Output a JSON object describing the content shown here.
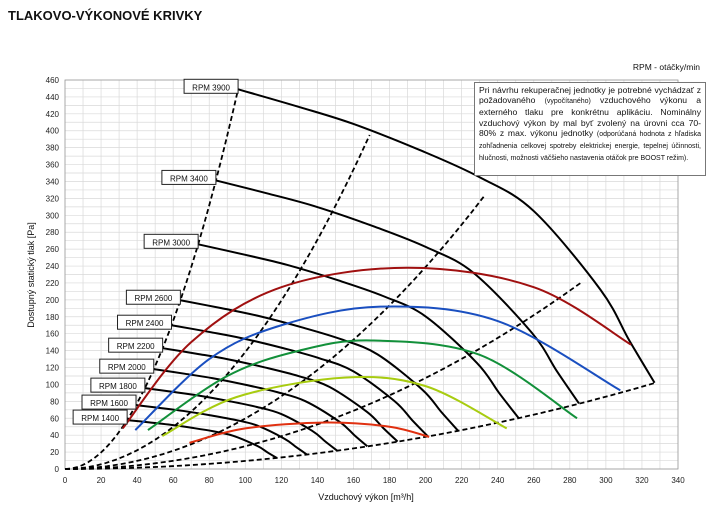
{
  "chart_data": {
    "type": "line",
    "title": "TLAKOVO-VÝKONOVÉ KRIVKY",
    "xlabel": "Vzduchový výkon [m³/h]",
    "ylabel": "Dostupný statický tlak [Pa]",
    "xlim": [
      0,
      340
    ],
    "ylim": [
      0,
      460
    ],
    "xticks": [
      0,
      20,
      40,
      60,
      80,
      100,
      120,
      140,
      160,
      180,
      200,
      220,
      240,
      260,
      280,
      300,
      320,
      340
    ],
    "yticks": [
      0,
      20,
      40,
      60,
      80,
      100,
      120,
      140,
      160,
      180,
      200,
      220,
      240,
      260,
      280,
      300,
      320,
      340,
      360,
      380,
      400,
      420,
      440,
      460
    ],
    "grid": true,
    "legend_note": "RPM - otáčky/min",
    "fan_curves": {
      "base_rpm": 3900,
      "base_points": [
        [
          96,
          449
        ],
        [
          130,
          428
        ],
        [
          160,
          408
        ],
        [
          197,
          377
        ],
        [
          230,
          345
        ],
        [
          260,
          305
        ],
        [
          297,
          212
        ],
        [
          313,
          152
        ],
        [
          327,
          102
        ]
      ],
      "rpm_values": [
        3900,
        3400,
        3000,
        2600,
        2400,
        2200,
        2000,
        1800,
        1600,
        1400
      ],
      "labels": [
        "RPM 3900",
        "RPM 3400",
        "RPM 3000",
        "RPM 2600",
        "RPM 2400",
        "RPM 2200",
        "RPM 2000",
        "RPM 1800",
        "RPM 1600",
        "RPM 1400"
      ]
    },
    "series": [
      {
        "name": "dark-red",
        "color": "#a01010",
        "points": [
          [
            32,
            48
          ],
          [
            70,
            150
          ],
          [
            120,
            215
          ],
          [
            190,
            238
          ],
          [
            260,
            215
          ],
          [
            314,
            147
          ]
        ]
      },
      {
        "name": "blue",
        "color": "#1a4fc0",
        "points": [
          [
            39,
            46
          ],
          [
            80,
            130
          ],
          [
            120,
            170
          ],
          [
            175,
            192
          ],
          [
            240,
            175
          ],
          [
            308,
            93
          ]
        ]
      },
      {
        "name": "green",
        "color": "#12903a",
        "points": [
          [
            46,
            46
          ],
          [
            90,
            110
          ],
          [
            130,
            140
          ],
          [
            170,
            152
          ],
          [
            230,
            135
          ],
          [
            284,
            60
          ]
        ]
      },
      {
        "name": "yellow-green",
        "color": "#a8cc10",
        "points": [
          [
            54,
            39
          ],
          [
            95,
            85
          ],
          [
            155,
            108
          ],
          [
            200,
            98
          ],
          [
            245,
            48
          ]
        ]
      },
      {
        "name": "orange-red",
        "color": "#e03010",
        "points": [
          [
            69,
            31
          ],
          [
            100,
            48
          ],
          [
            145,
            55
          ],
          [
            180,
            50
          ],
          [
            202,
            38
          ]
        ]
      }
    ],
    "system_curves": [
      {
        "coef": 0.0487,
        "qmax": 96
      },
      {
        "coef": 0.01383,
        "qmax": 169
      },
      {
        "coef": 0.00597,
        "qmax": 233
      },
      {
        "coef": 0.00269,
        "qmax": 286
      },
      {
        "coef": 0.00095,
        "qmax": 327
      }
    ]
  },
  "note": {
    "main": "Pri návrhu rekuperačnej jednotky je potrebné vychádzať z požadovaného",
    "small1": "(vypočítaného)",
    "main2": "vzduchového výkonu a externého tlaku pre konkrétnu aplikáciu. Nominálny vzduchový výkon by mal byť zvolený na úrovni cca 70-80% z max. výkonu jednotky",
    "small2": "(odporúčaná hodnota z hľadiska zohľadnenia celkovej spotreby elektrickej energie, tepelnej účinnosti, hlučnosti, možnosti väčšieho nastavenia otáčok pre BOOST režim)."
  }
}
